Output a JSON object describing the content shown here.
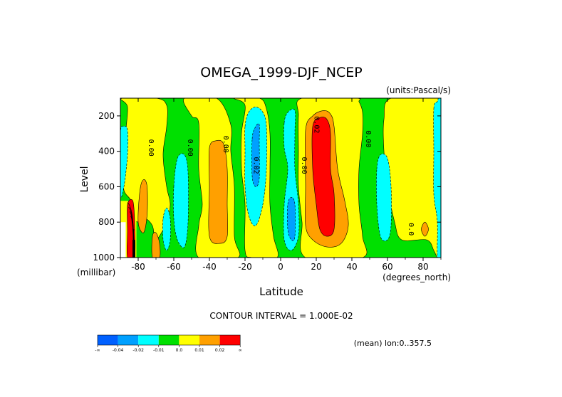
{
  "chart_data": {
    "type": "contour",
    "title": "OMEGA_1999-DJF_NCEP",
    "units": "(units:Pascal/s)",
    "xlabel": "Latitude",
    "xunits": "(degrees_north)",
    "ylabel": "Level",
    "yunits": "(millibar)",
    "xlim": [
      -90,
      90
    ],
    "ylim": [
      1000,
      100
    ],
    "x_ticks": [
      "-80",
      "-60",
      "-40",
      "-20",
      "0",
      "20",
      "40",
      "60",
      "80"
    ],
    "x_tick_values": [
      -80,
      -60,
      -40,
      -20,
      0,
      20,
      40,
      60,
      80
    ],
    "y_ticks": [
      "200",
      "400",
      "600",
      "800",
      "1000"
    ],
    "y_tick_values": [
      200,
      400,
      600,
      800,
      1000
    ],
    "contour_interval_text": "CONTOUR INTERVAL = 1.000E-02",
    "mean_text": "(mean) lon:0..357.5",
    "contour_labels": [
      {
        "text": "0.00",
        "lat": -74,
        "lev": 380
      },
      {
        "text": "0.00",
        "lat": -52,
        "lev": 380
      },
      {
        "text": "0.00",
        "lat": -32,
        "lev": 360
      },
      {
        "text": "0.02",
        "lat": -15,
        "lev": 480
      },
      {
        "text": "0.00",
        "lat": 12,
        "lev": 480
      },
      {
        "text": "0.02",
        "lat": 19,
        "lev": 250
      },
      {
        "text": "0.00",
        "lat": 48,
        "lev": 330
      },
      {
        "text": "0.0",
        "lat": 72,
        "lev": 840
      }
    ],
    "colorbar": {
      "colors": [
        "#0060ff",
        "#00a0ff",
        "#00ffff",
        "#00e000",
        "#ffff00",
        "#ffa000",
        "#ff0000"
      ],
      "labels": [
        "-∞",
        "-0.04",
        "-0.02",
        "-0.01",
        "0.0",
        "0.01",
        "0.02",
        "∞"
      ]
    },
    "colors": {
      "green": "#00e000",
      "yellow": "#ffff00",
      "orange": "#ffa000",
      "red": "#ff0000",
      "cyan": "#00ffff",
      "blue": "#00a0ff"
    },
    "regions": [
      {
        "name": "yellow-band-sh-polar",
        "color": "yellow",
        "poly": [
          [
            -89,
            100
          ],
          [
            -86,
            150
          ],
          [
            -87,
            300
          ],
          [
            -88,
            500
          ],
          [
            -88,
            620
          ],
          [
            -84,
            680
          ],
          [
            -84,
            760
          ],
          [
            -80,
            800
          ],
          [
            -76,
            780
          ],
          [
            -72,
            820
          ],
          [
            -70,
            900
          ],
          [
            -64,
            800
          ],
          [
            -62,
            700
          ],
          [
            -64,
            600
          ],
          [
            -66,
            420
          ],
          [
            -64,
            260
          ],
          [
            -64,
            140
          ],
          [
            -70,
            100
          ]
        ]
      },
      {
        "name": "yellow-band-sh-mid",
        "color": "yellow",
        "poly": [
          [
            -54,
            100
          ],
          [
            -50,
            200
          ],
          [
            -46,
            240
          ],
          [
            -46,
            500
          ],
          [
            -44,
            700
          ],
          [
            -46,
            820
          ],
          [
            -46,
            1000
          ],
          [
            -24,
            1000
          ],
          [
            -26,
            880
          ],
          [
            -26,
            600
          ],
          [
            -28,
            400
          ],
          [
            -28,
            250
          ],
          [
            -36,
            100
          ]
        ]
      },
      {
        "name": "yellow-band-tropics-left",
        "color": "yellow",
        "poly": [
          [
            -26,
            100
          ],
          [
            -20,
            140
          ],
          [
            -22,
            300
          ],
          [
            -22,
            500
          ],
          [
            -20,
            700
          ],
          [
            -20,
            960
          ],
          [
            -16,
            1000
          ],
          [
            -2,
            1000
          ],
          [
            -4,
            880
          ],
          [
            -6,
            700
          ],
          [
            -6,
            500
          ],
          [
            -6,
            300
          ],
          [
            -8,
            160
          ],
          [
            -12,
            100
          ]
        ]
      },
      {
        "name": "yellow-band-nh",
        "color": "yellow",
        "poly": [
          [
            12,
            100
          ],
          [
            10,
            200
          ],
          [
            10,
            400
          ],
          [
            10,
            600
          ],
          [
            12,
            800
          ],
          [
            14,
            1000
          ],
          [
            46,
            1000
          ],
          [
            46,
            880
          ],
          [
            44,
            700
          ],
          [
            44,
            500
          ],
          [
            46,
            300
          ],
          [
            46,
            180
          ],
          [
            44,
            120
          ],
          [
            42,
            100
          ]
        ]
      },
      {
        "name": "yellow-band-nh-polar",
        "color": "yellow",
        "poly": [
          [
            62,
            100
          ],
          [
            58,
            220
          ],
          [
            58,
            400
          ],
          [
            60,
            600
          ],
          [
            64,
            800
          ],
          [
            68,
            900
          ],
          [
            82,
            900
          ],
          [
            86,
            960
          ],
          [
            88,
            1000
          ],
          [
            90,
            1000
          ],
          [
            90,
            100
          ]
        ]
      },
      {
        "name": "orange-sh-polar",
        "color": "orange",
        "poly": [
          [
            -79,
            620
          ],
          [
            -77,
            560
          ],
          [
            -75,
            600
          ],
          [
            -75,
            760
          ],
          [
            -77,
            860
          ],
          [
            -80,
            800
          ]
        ]
      },
      {
        "name": "orange-sh-mid",
        "color": "orange",
        "poly": [
          [
            -40,
            380
          ],
          [
            -36,
            340
          ],
          [
            -32,
            360
          ],
          [
            -30,
            500
          ],
          [
            -30,
            700
          ],
          [
            -30,
            880
          ],
          [
            -34,
            920
          ],
          [
            -40,
            880
          ],
          [
            -40,
            600
          ]
        ]
      },
      {
        "name": "orange-nh",
        "color": "orange",
        "poly": [
          [
            14,
            280
          ],
          [
            18,
            200
          ],
          [
            24,
            170
          ],
          [
            28,
            190
          ],
          [
            30,
            260
          ],
          [
            32,
            500
          ],
          [
            36,
            680
          ],
          [
            38,
            820
          ],
          [
            34,
            920
          ],
          [
            26,
            940
          ],
          [
            18,
            900
          ],
          [
            14,
            820
          ],
          [
            14,
            600
          ]
        ]
      },
      {
        "name": "red-nh",
        "color": "red",
        "poly": [
          [
            18,
            260
          ],
          [
            22,
            210
          ],
          [
            26,
            220
          ],
          [
            28,
            300
          ],
          [
            28,
            500
          ],
          [
            30,
            640
          ],
          [
            30,
            840
          ],
          [
            26,
            880
          ],
          [
            22,
            840
          ],
          [
            20,
            700
          ],
          [
            18,
            500
          ]
        ]
      },
      {
        "name": "cyan-sh",
        "color": "cyan",
        "poly": [
          [
            -60,
            600
          ],
          [
            -58,
            440
          ],
          [
            -54,
            420
          ],
          [
            -52,
            520
          ],
          [
            -52,
            800
          ],
          [
            -54,
            940
          ],
          [
            -58,
            900
          ],
          [
            -60,
            780
          ]
        ]
      },
      {
        "name": "cyan-tropics-s",
        "color": "cyan",
        "poly": [
          [
            -20,
            260
          ],
          [
            -18,
            180
          ],
          [
            -14,
            150
          ],
          [
            -10,
            180
          ],
          [
            -8,
            260
          ],
          [
            -8,
            500
          ],
          [
            -10,
            700
          ],
          [
            -14,
            820
          ],
          [
            -18,
            760
          ],
          [
            -20,
            600
          ],
          [
            -20,
            400
          ]
        ]
      },
      {
        "name": "blue-tropics-s",
        "color": "blue",
        "poly": [
          [
            -16,
            330
          ],
          [
            -14,
            260
          ],
          [
            -12,
            250
          ],
          [
            -12,
            350
          ],
          [
            -12,
            550
          ],
          [
            -14,
            600
          ],
          [
            -16,
            540
          ]
        ]
      },
      {
        "name": "cyan-tropics-n",
        "color": "cyan",
        "poly": [
          [
            2,
            240
          ],
          [
            4,
            180
          ],
          [
            8,
            170
          ],
          [
            8,
            300
          ],
          [
            8,
            500
          ],
          [
            10,
            700
          ],
          [
            10,
            880
          ],
          [
            6,
            960
          ],
          [
            2,
            900
          ],
          [
            2,
            700
          ],
          [
            4,
            500
          ],
          [
            2,
            380
          ]
        ]
      },
      {
        "name": "blue-tropics-n",
        "color": "blue",
        "poly": [
          [
            4,
            700
          ],
          [
            6,
            660
          ],
          [
            8,
            700
          ],
          [
            8,
            880
          ],
          [
            6,
            900
          ],
          [
            4,
            840
          ]
        ]
      },
      {
        "name": "cyan-nh-60",
        "color": "cyan",
        "poly": [
          [
            54,
            500
          ],
          [
            56,
            420
          ],
          [
            60,
            440
          ],
          [
            62,
            600
          ],
          [
            62,
            820
          ],
          [
            60,
            900
          ],
          [
            56,
            880
          ],
          [
            54,
            700
          ]
        ]
      },
      {
        "name": "cyan-sh-polar",
        "color": "cyan",
        "poly": [
          [
            -90,
            300
          ],
          [
            -88,
            260
          ],
          [
            -86,
            280
          ],
          [
            -86,
            420
          ],
          [
            -88,
            600
          ],
          [
            -90,
            640
          ]
        ]
      },
      {
        "name": "cyan-nh-polar",
        "color": "cyan",
        "poly": [
          [
            86,
            160
          ],
          [
            88,
            120
          ],
          [
            90,
            120
          ],
          [
            90,
            1000
          ],
          [
            88,
            1000
          ],
          [
            88,
            800
          ],
          [
            86,
            640
          ],
          [
            86,
            400
          ]
        ]
      },
      {
        "name": "cyan-sh-70",
        "color": "cyan",
        "poly": [
          [
            -66,
            780
          ],
          [
            -64,
            720
          ],
          [
            -62,
            780
          ],
          [
            -62,
            900
          ],
          [
            -64,
            960
          ],
          [
            -66,
            900
          ]
        ]
      },
      {
        "name": "orange-sh-70",
        "color": "orange",
        "poly": [
          [
            -72,
            880
          ],
          [
            -70,
            860
          ],
          [
            -68,
            920
          ],
          [
            -68,
            1000
          ],
          [
            -72,
            1000
          ]
        ]
      },
      {
        "name": "orange-nh-80",
        "color": "orange",
        "poly": [
          [
            79,
            840
          ],
          [
            81,
            800
          ],
          [
            83,
            840
          ],
          [
            81,
            880
          ]
        ]
      }
    ],
    "polar_blob": {
      "lat_range": [
        -90,
        -81
      ],
      "lev_range": [
        680,
        1000
      ]
    }
  }
}
